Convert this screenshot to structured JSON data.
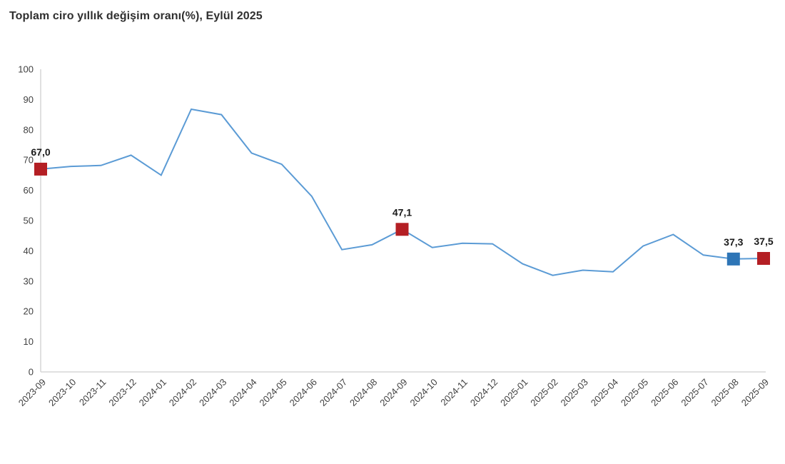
{
  "title": "Toplam ciro yıllık değişim oranı(%), Eylül 2025",
  "chart_data": {
    "type": "line",
    "title": "Toplam ciro yıllık değişim oranı(%), Eylül 2025",
    "categories": [
      "2023-09",
      "2023-10",
      "2023-11",
      "2023-12",
      "2024-01",
      "2024-02",
      "2024-03",
      "2024-04",
      "2024-05",
      "2024-06",
      "2024-07",
      "2024-08",
      "2024-09",
      "2024-10",
      "2024-11",
      "2024-12",
      "2025-01",
      "2025-02",
      "2025-03",
      "2025-04",
      "2025-05",
      "2025-06",
      "2025-07",
      "2025-08",
      "2025-09"
    ],
    "values": [
      67.0,
      67.9,
      68.2,
      71.6,
      65.0,
      86.8,
      85.0,
      72.3,
      68.6,
      58.0,
      40.4,
      42.0,
      47.1,
      41.1,
      42.5,
      42.3,
      35.7,
      31.9,
      33.6,
      33.1,
      41.6,
      45.4,
      38.6,
      37.3,
      37.5
    ],
    "ylim": [
      0,
      100
    ],
    "yticks": [
      0,
      10,
      20,
      30,
      40,
      50,
      60,
      70,
      80,
      90,
      100
    ],
    "xlabel": "",
    "ylabel": "",
    "grid": false,
    "legend": "none",
    "line_color": "#5b9bd5",
    "axis_color": "#d6d6d6",
    "tick_text_color": "#3f3f3f",
    "annotations": [
      {
        "index": 0,
        "label": "67,0",
        "marker_color": "#b41f24"
      },
      {
        "index": 12,
        "label": "47,1",
        "marker_color": "#b41f24"
      },
      {
        "index": 23,
        "label": "37,3",
        "marker_color": "#2e75b6"
      },
      {
        "index": 24,
        "label": "37,5",
        "marker_color": "#b41f24"
      }
    ]
  }
}
